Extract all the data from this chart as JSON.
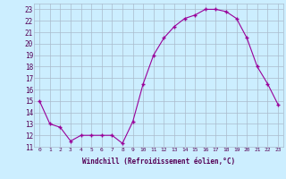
{
  "x": [
    0,
    1,
    2,
    3,
    4,
    5,
    6,
    7,
    8,
    9,
    10,
    11,
    12,
    13,
    14,
    15,
    16,
    17,
    18,
    19,
    20,
    21,
    22,
    23
  ],
  "y": [
    15,
    13,
    12.7,
    11.5,
    12,
    12,
    12,
    12,
    11.3,
    13.2,
    16.5,
    19,
    20.5,
    21.5,
    22.2,
    22.5,
    23,
    23,
    22.8,
    22.2,
    20.5,
    18,
    16.5,
    14.7
  ],
  "line_color": "#990099",
  "marker_color": "#990099",
  "bg_color": "#cceeff",
  "grid_color": "#aabbcc",
  "xlabel": "Windchill (Refroidissement éolien,°C)",
  "xlim": [
    -0.5,
    23.5
  ],
  "ylim": [
    11,
    23.5
  ],
  "yticks": [
    11,
    12,
    13,
    14,
    15,
    16,
    17,
    18,
    19,
    20,
    21,
    22,
    23
  ],
  "xticks": [
    0,
    1,
    2,
    3,
    4,
    5,
    6,
    7,
    8,
    9,
    10,
    11,
    12,
    13,
    14,
    15,
    16,
    17,
    18,
    19,
    20,
    21,
    22,
    23
  ]
}
